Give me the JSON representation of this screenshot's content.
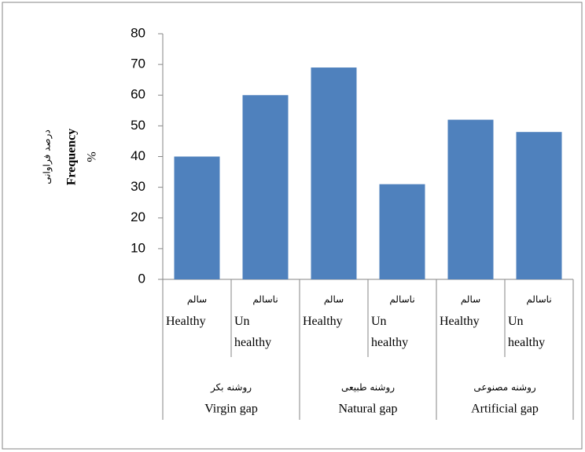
{
  "chart_data": {
    "type": "bar",
    "y_label_fa": "درصد فراوانی",
    "y_label": "Frequency",
    "y_unit": "%",
    "categories": [
      "Healthy",
      "Un healthy",
      "Healthy",
      "Un healthy",
      "Healthy",
      "Un healthy"
    ],
    "categories_fa": [
      "سالم",
      "ناسالم",
      "سالم",
      "ناسالم",
      "سالم",
      "ناسالم"
    ],
    "groups": [
      "Virgin gap",
      "Natural gap",
      "Artificial gap"
    ],
    "groups_fa": [
      "روشنه بکر",
      "روشنه طبیعی",
      "روشنه مصنوعی"
    ],
    "values": [
      40,
      60,
      69,
      31,
      52,
      48
    ],
    "color": "#4f81bd",
    "ylim": [
      0,
      80
    ],
    "yticks": [
      0,
      10,
      20,
      30,
      40,
      50,
      60,
      70,
      80
    ]
  }
}
